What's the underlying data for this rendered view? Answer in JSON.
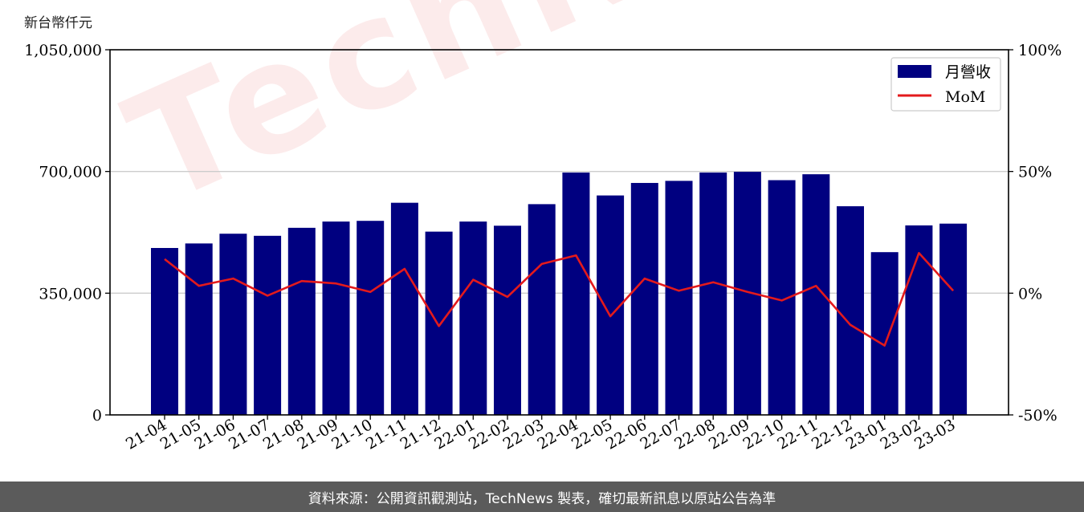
{
  "unit_label": "新台幣仟元",
  "footer_text": "資料來源：公開資訊觀測站，TechNews 製表，確切最新訊息以原站公告為準",
  "watermark_text": "TechNews",
  "colors": {
    "bar": "#000080",
    "line": "#e31a1c",
    "grid": "#cccccc",
    "footer_bg": "#5b5b5b"
  },
  "chart_data": {
    "type": "bar",
    "categories": [
      "21-04",
      "21-05",
      "21-06",
      "21-07",
      "21-08",
      "21-09",
      "21-10",
      "21-11",
      "21-12",
      "22-01",
      "22-02",
      "22-03",
      "22-04",
      "22-05",
      "22-06",
      "22-07",
      "22-08",
      "22-09",
      "22-10",
      "22-11",
      "22-12",
      "23-01",
      "23-02",
      "23-03"
    ],
    "series": [
      {
        "name": "月營收",
        "type": "bar",
        "axis": "left",
        "values": [
          480000,
          493000,
          521000,
          515000,
          538000,
          556000,
          558000,
          610000,
          527000,
          556000,
          544000,
          606000,
          697000,
          631000,
          667000,
          673000,
          697000,
          699000,
          675000,
          692000,
          600000,
          468000,
          545000,
          550000
        ]
      },
      {
        "name": "MoM",
        "type": "line",
        "axis": "right",
        "values": [
          14,
          3,
          6,
          -1,
          5,
          4,
          0.5,
          10,
          -13.5,
          5.5,
          -1.5,
          12,
          15.5,
          -9.5,
          6,
          1,
          4.5,
          0.5,
          -3,
          3,
          -13,
          -21.5,
          16.5,
          1
        ]
      }
    ],
    "y_left": {
      "ticks": [
        "0",
        "350,000",
        "700,000",
        "1,050,000"
      ],
      "range": [
        0,
        1050000
      ]
    },
    "y_right": {
      "ticks": [
        "-50%",
        "0%",
        "50%",
        "100%"
      ],
      "range": [
        -50,
        100
      ]
    },
    "grid": "horizontal",
    "legend": "top-right"
  }
}
